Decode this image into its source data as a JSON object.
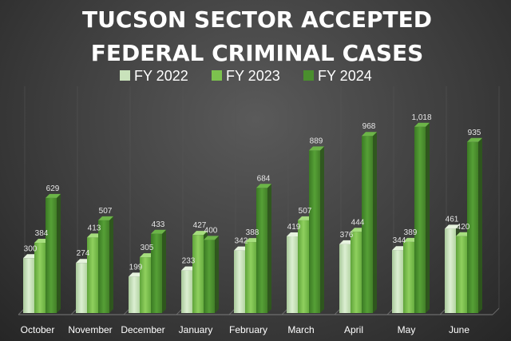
{
  "chart_data": {
    "type": "bar",
    "title_lines": [
      "TUCSON SECTOR ACCEPTED",
      "FEDERAL CRIMINAL CASES"
    ],
    "categories": [
      "October",
      "November",
      "December",
      "January",
      "February",
      "March",
      "April",
      "May",
      "June"
    ],
    "series": [
      {
        "name": "FY 2022",
        "color": "#c9e2bb",
        "values": [
          300,
          274,
          199,
          233,
          342,
          419,
          376,
          344,
          461
        ],
        "labels": [
          "300",
          "274",
          "199",
          "233",
          "342",
          "419",
          "376",
          "344",
          "461"
        ]
      },
      {
        "name": "FY 2023",
        "color": "#7cc24e",
        "values": [
          384,
          413,
          305,
          427,
          388,
          507,
          444,
          389,
          420
        ],
        "labels": [
          "384",
          "413",
          "305",
          "427",
          "388",
          "507",
          "444",
          "389",
          "420"
        ]
      },
      {
        "name": "FY 2024",
        "color": "#4a8f2e",
        "values": [
          629,
          507,
          433,
          400,
          684,
          889,
          968,
          1018,
          935
        ],
        "labels": [
          "629",
          "507",
          "433",
          "400",
          "684",
          "889",
          "968",
          "1,018",
          "935"
        ]
      }
    ],
    "ylim": [
      0,
      1100
    ],
    "grid": false,
    "legend_position": "top"
  }
}
